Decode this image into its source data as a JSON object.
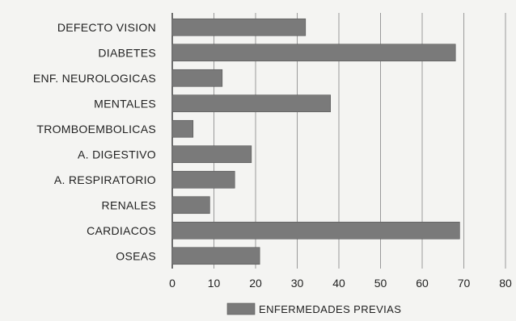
{
  "chart_data": {
    "type": "bar",
    "orientation": "horizontal",
    "categories": [
      "DEFECTO VISION",
      "DIABETES",
      "ENF. NEUROLOGICAS",
      "MENTALES",
      "TROMBOEMBOLICAS",
      "A. DIGESTIVO",
      "A. RESPIRATORIO",
      "RENALES",
      "CARDIACOS",
      "OSEAS"
    ],
    "series": [
      {
        "name": "ENFERMEDADES PREVIAS",
        "values": [
          32,
          68,
          12,
          38,
          5,
          19,
          15,
          9,
          69,
          21
        ]
      }
    ],
    "xlim": [
      0,
      80
    ],
    "xticks": [
      "0",
      "10",
      "20",
      "30",
      "40",
      "50",
      "60",
      "70",
      "80"
    ],
    "grid": "vertical",
    "legend_position": "bottom-center",
    "bar_color": "#7a7a7a"
  }
}
